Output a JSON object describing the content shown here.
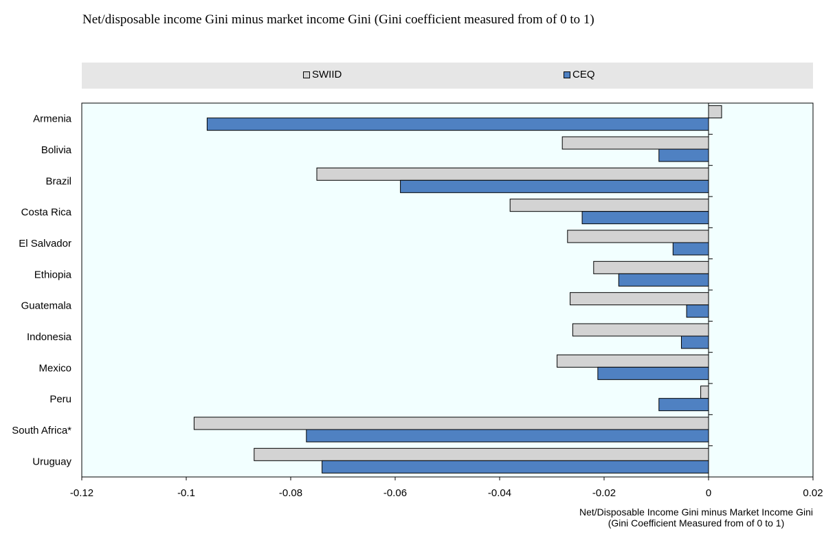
{
  "title": "Net/disposable income Gini minus market income Gini (Gini coefficient measured from of 0 to 1)",
  "legend": {
    "items": [
      {
        "label": "SWIID",
        "color": "#d3d3d3"
      },
      {
        "label": "CEQ",
        "color": "#4f81c2"
      }
    ],
    "placement": "top"
  },
  "xlabel": {
    "line1": "Net/Disposable Income Gini minus Market Income Gini",
    "line2": "(Gini Coefficient Measured from of 0 to 1)"
  },
  "chart_data": {
    "type": "bar",
    "orientation": "horizontal",
    "title": "Net/disposable income Gini minus market income Gini (Gini coefficient measured from of 0 to 1)",
    "xlabel": "Net/Disposable Income Gini minus Market Income Gini (Gini Coefficient Measured from of 0 to 1)",
    "ylabel": "",
    "categories": [
      "Armenia",
      "Bolivia",
      "Brazil",
      "Costa Rica",
      "El Salvador",
      "Ethiopia",
      "Guatemala",
      "Indonesia",
      "Mexico",
      "Peru",
      "South Africa*",
      "Uruguay"
    ],
    "series": [
      {
        "name": "SWIID",
        "color": "#d3d3d3",
        "values": [
          0.0025,
          -0.028,
          -0.075,
          -0.038,
          -0.027,
          -0.022,
          -0.0265,
          -0.026,
          -0.029,
          -0.0015,
          -0.0985,
          -0.087
        ]
      },
      {
        "name": "CEQ",
        "color": "#4f81c2",
        "values": [
          -0.096,
          -0.0095,
          -0.059,
          -0.0242,
          -0.0068,
          -0.0172,
          -0.0042,
          -0.0052,
          -0.0212,
          -0.0095,
          -0.077,
          -0.074
        ]
      }
    ],
    "xlim": [
      -0.12,
      0.02
    ],
    "xticks": [
      -0.12,
      -0.1,
      -0.08,
      -0.06,
      -0.04,
      -0.02,
      0,
      0.02
    ],
    "xtick_labels": [
      "-0.12",
      "-0.1",
      "-0.08",
      "-0.06",
      "-0.04",
      "-0.02",
      "0",
      "0.02"
    ],
    "grid": false,
    "plot_background": "#f2ffff"
  }
}
